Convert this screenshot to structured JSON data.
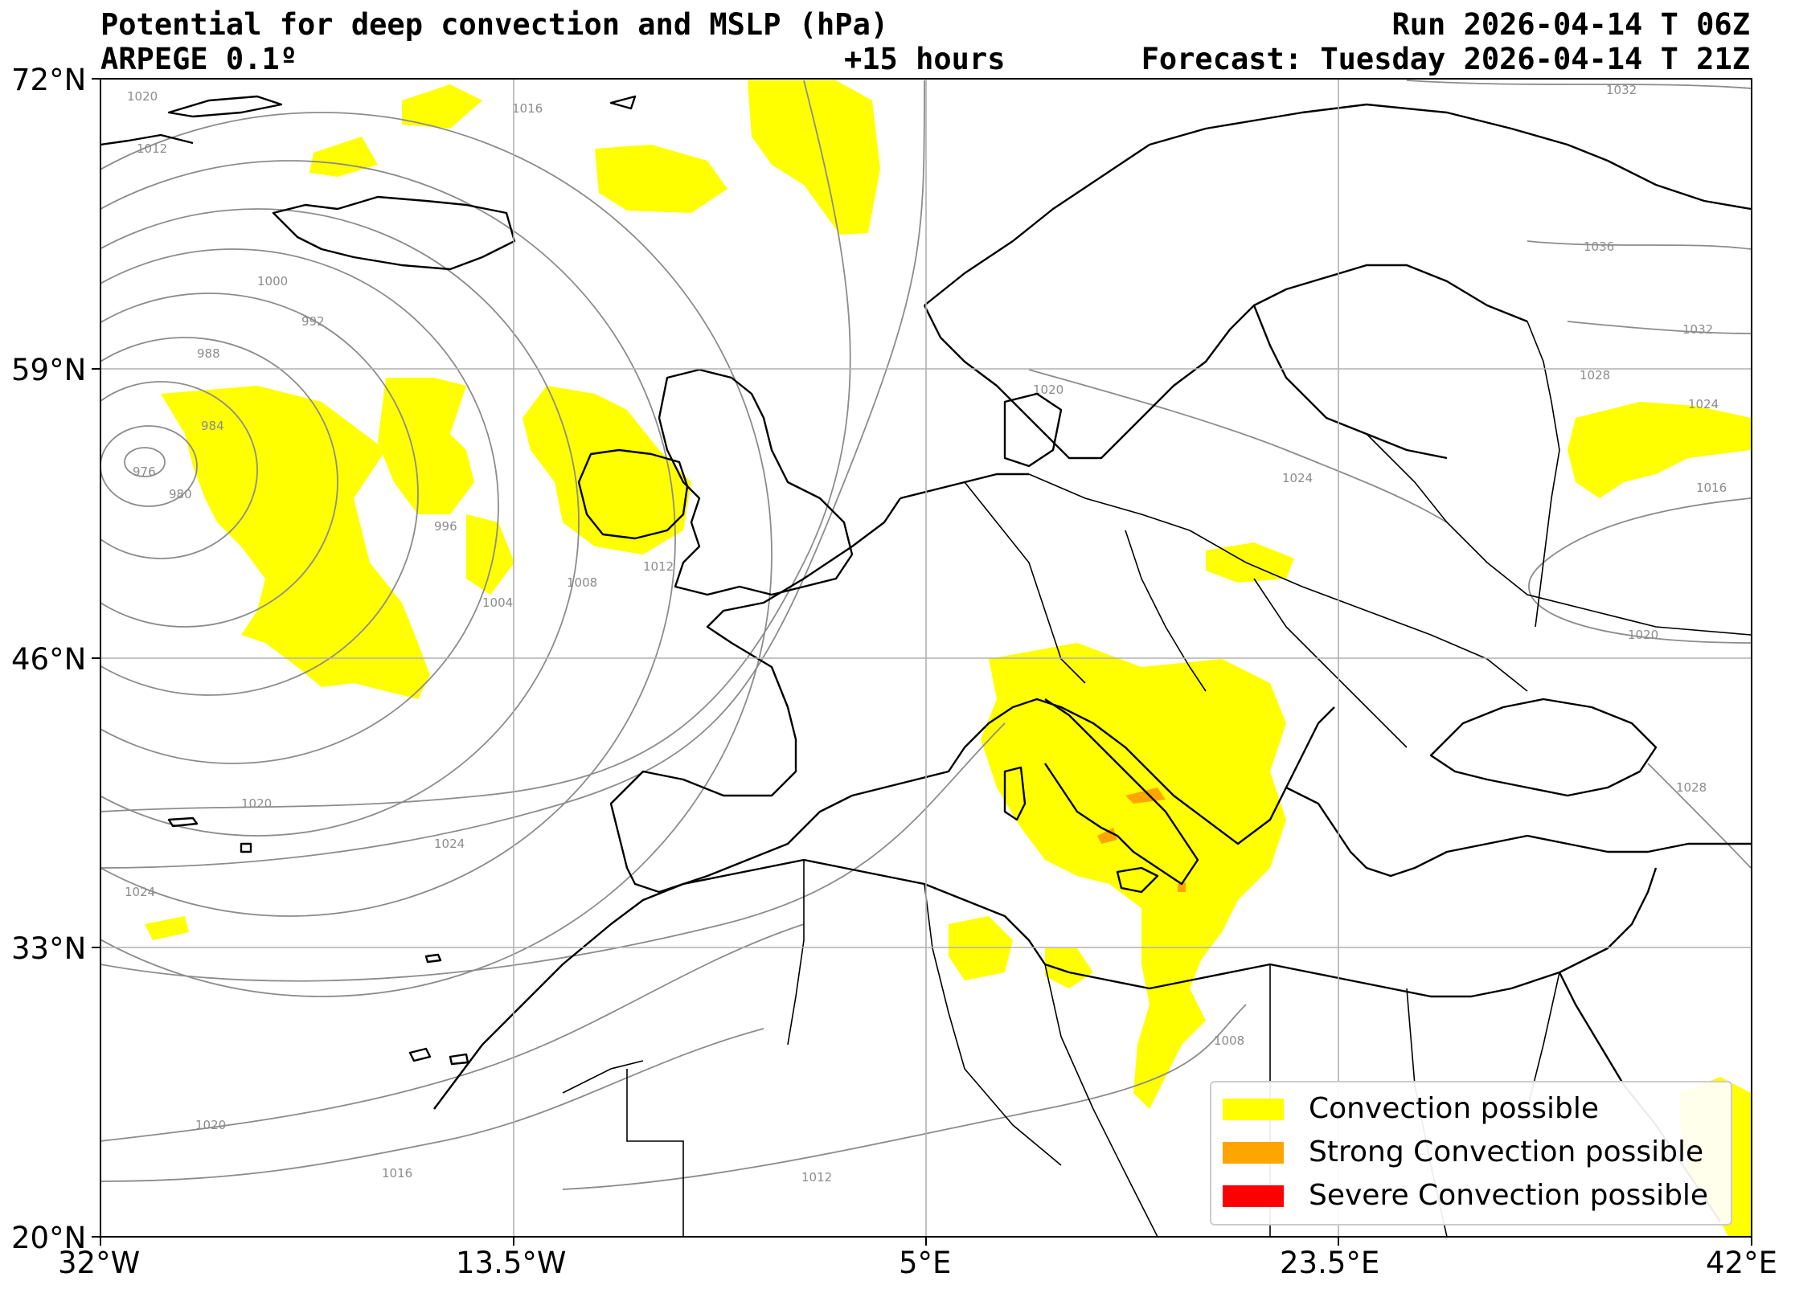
{
  "header": {
    "title": "Potential for deep convection and MSLP (hPa)",
    "model": "ARPEGE 0.1º",
    "lead_time": "+15 hours",
    "run": "Run 2026-04-14 T 06Z",
    "forecast": "Forecast: Tuesday 2026-04-14 T 21Z"
  },
  "axes": {
    "lat_labels": [
      "72°N",
      "59°N",
      "46°N",
      "33°N",
      "20°N"
    ],
    "lon_labels": [
      "32°W",
      "13.5°W",
      "5°E",
      "23.5°E",
      "42°E"
    ],
    "lat_range": [
      20,
      72
    ],
    "lon_range": [
      -32,
      42
    ],
    "gridlines": true
  },
  "isobars": {
    "color": "#8c8c8c",
    "labels": [
      "1020",
      "1016",
      "1012",
      "1000",
      "992",
      "988",
      "984",
      "976",
      "980",
      "996",
      "1004",
      "1008",
      "1012",
      "1020",
      "1024",
      "1024",
      "1020",
      "1016",
      "1012",
      "1008",
      "1020",
      "1024",
      "1032",
      "1036",
      "1032",
      "1028",
      "1024",
      "1016",
      "1020",
      "1028"
    ]
  },
  "legend": {
    "placement": "bottom-right",
    "items": [
      {
        "label": "Convection possible",
        "color": "#ffff00"
      },
      {
        "label": "Strong Convection possible",
        "color": "#ffa500"
      },
      {
        "label": "Severe Convection possible",
        "color": "#ff0000"
      }
    ]
  }
}
